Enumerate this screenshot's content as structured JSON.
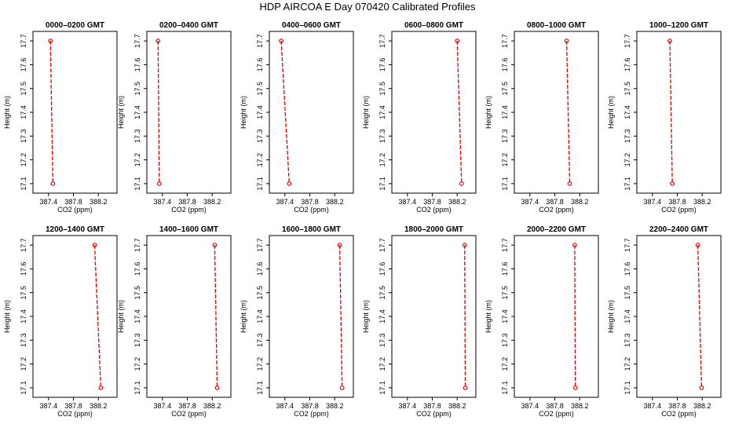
{
  "page": {
    "title": "HDP  AIRCOA E  Day 070420  Calibrated Profiles"
  },
  "chart_data": {
    "type": "line",
    "xlabel": "CO2 (ppm)",
    "ylabel": "Height (m)",
    "xlim": [
      387.15,
      388.5
    ],
    "ylim": [
      17.06,
      17.74
    ],
    "x_ticks": [
      "387.4",
      "387.8",
      "388.2"
    ],
    "y_ticks": [
      "17.1",
      "17.2",
      "17.3",
      "17.4",
      "17.5",
      "17.6",
      "17.7"
    ],
    "line_color": "#dd0000",
    "grid": false,
    "panels": [
      {
        "title": "0000–0200 GMT",
        "x": [
          387.43,
          387.47
        ],
        "y": [
          17.7,
          17.1
        ]
      },
      {
        "title": "0200–0400 GMT",
        "x": [
          387.33,
          387.35
        ],
        "y": [
          17.7,
          17.1
        ]
      },
      {
        "title": "0400–0600 GMT",
        "x": [
          387.34,
          387.47
        ],
        "y": [
          17.7,
          17.1
        ]
      },
      {
        "title": "0600–0800 GMT",
        "x": [
          388.2,
          388.27
        ],
        "y": [
          17.7,
          17.1
        ]
      },
      {
        "title": "0800–1000 GMT",
        "x": [
          387.99,
          388.04
        ],
        "y": [
          17.7,
          17.1
        ]
      },
      {
        "title": "1000–1200 GMT",
        "x": [
          387.68,
          387.72
        ],
        "y": [
          17.7,
          17.1
        ]
      },
      {
        "title": "1200–1400 GMT",
        "x": [
          388.14,
          388.24
        ],
        "y": [
          17.7,
          17.1
        ]
      },
      {
        "title": "1400–1600 GMT",
        "x": [
          388.24,
          388.28
        ],
        "y": [
          17.7,
          17.1
        ]
      },
      {
        "title": "1600–1800 GMT",
        "x": [
          388.28,
          388.32
        ],
        "y": [
          17.7,
          17.1
        ]
      },
      {
        "title": "1800–2000 GMT",
        "x": [
          388.32,
          388.33
        ],
        "y": [
          17.7,
          17.1
        ]
      },
      {
        "title": "2000–2200 GMT",
        "x": [
          388.12,
          388.13
        ],
        "y": [
          17.7,
          17.1
        ]
      },
      {
        "title": "2200–2400 GMT",
        "x": [
          388.13,
          388.19
        ],
        "y": [
          17.7,
          17.1
        ]
      }
    ]
  }
}
